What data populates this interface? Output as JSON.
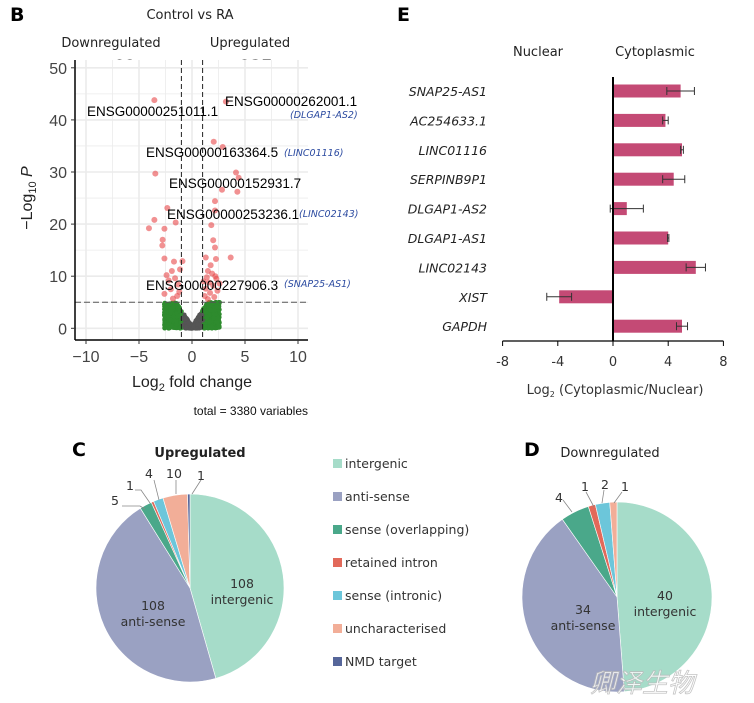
{
  "chart_data": [
    {
      "panel": "B",
      "type": "scatter",
      "title": "Control vs RA",
      "xlabel": {
        "base": "Log",
        "sub": "2",
        "rest": " fold change"
      },
      "ylabel": {
        "prefix": "−Log",
        "sub": "10",
        "rest": " P"
      },
      "xlim": [
        -11,
        11
      ],
      "ylim": [
        -2,
        50
      ],
      "xticks": [
        "−10",
        "−5",
        "0",
        "5",
        "10"
      ],
      "xtick_values": [
        -10,
        -5,
        0,
        5,
        10
      ],
      "yticks": [
        "0",
        "10",
        "20",
        "30",
        "40",
        "50"
      ],
      "ytick_values": [
        0,
        10,
        20,
        30,
        40,
        50
      ],
      "grid": true,
      "fc_cutoff": [
        -1,
        1
      ],
      "p_cutoff": 5,
      "group_labels": {
        "down": "Downregulated",
        "up": "Upregulated"
      },
      "counts": {
        "down": "82",
        "up": "237"
      },
      "caption": "total = 3380 variables",
      "colors": {
        "significant": "#e8474a",
        "fc_only": "#2e8b2e",
        "ns": "#555555"
      },
      "significant_points": [
        [
          -3.55,
          43.8
        ],
        [
          3.2,
          43.5
        ],
        [
          2.05,
          35.8
        ],
        [
          2.9,
          34.8
        ],
        [
          -3.46,
          29.7
        ],
        [
          4.15,
          29.9
        ],
        [
          4.4,
          28.9
        ],
        [
          2.83,
          26.6
        ],
        [
          4.28,
          26.2
        ],
        [
          2.17,
          24.4
        ],
        [
          -2.33,
          23.1
        ],
        [
          2.17,
          22.6
        ],
        [
          -3.55,
          20.8
        ],
        [
          -1.54,
          20.3
        ],
        [
          -4.06,
          19.2
        ],
        [
          -2.6,
          19.1
        ],
        [
          1.82,
          19.8
        ],
        [
          2.0,
          16.9
        ],
        [
          -2.77,
          17.0
        ],
        [
          -2.8,
          15.9
        ],
        [
          2.17,
          15.5
        ],
        [
          3.65,
          13.6
        ],
        [
          -2.6,
          13.4
        ],
        [
          2.26,
          13.3
        ],
        [
          1.3,
          13.6
        ],
        [
          -1.7,
          12.8
        ],
        [
          -0.9,
          12.9
        ],
        [
          1.76,
          12.1
        ],
        [
          -1.13,
          11.3
        ],
        [
          1.5,
          11
        ],
        [
          1.9,
          10.5
        ],
        [
          1.4,
          9.8
        ],
        [
          2.3,
          9.5
        ],
        [
          1.6,
          8.8
        ],
        [
          2.0,
          8.2
        ],
        [
          1.3,
          7.6
        ],
        [
          2.4,
          7.2
        ],
        [
          1.7,
          6.8
        ],
        [
          1.2,
          6.2
        ],
        [
          2.1,
          6.0
        ],
        [
          1.5,
          5.6
        ],
        [
          2.6,
          8.6
        ],
        [
          1.1,
          9.0
        ],
        [
          2.2,
          10.0
        ],
        [
          -1.6,
          9.6
        ],
        [
          -2.2,
          9.2
        ],
        [
          -1.3,
          8.4
        ],
        [
          -2.0,
          7.5
        ],
        [
          -2.6,
          6.6
        ],
        [
          -1.4,
          6.2
        ],
        [
          -1.8,
          5.7
        ],
        [
          -2.4,
          10.2
        ],
        [
          -1.2,
          7.0
        ],
        [
          -1.9,
          11.0
        ]
      ],
      "annotations": [
        {
          "gene": "ENSG00000251011.1",
          "alias": ""
        },
        {
          "gene": "ENSG00000262001.1",
          "alias": "(DLGAP1-AS2)"
        },
        {
          "gene": "ENSG00000163364.5",
          "alias": "(LINC01116)"
        },
        {
          "gene": "ENSG00000152931.7",
          "alias": ""
        },
        {
          "gene": "ENSG00000253236.1",
          "alias": "(LINC02143)"
        },
        {
          "gene": "ENSG00000227906.3",
          "alias": "(SNAP25-AS1)"
        }
      ]
    },
    {
      "panel": "E",
      "type": "bar",
      "orientation": "horizontal",
      "categories": [
        "SNAP25-AS1",
        "AC254633.1",
        "LINC01116",
        "SERPINB9P1",
        "DLGAP1-AS2",
        "DLGAP1-AS1",
        "LINC02143",
        "XIST",
        "GAPDH"
      ],
      "values": [
        4.9,
        3.8,
        5.0,
        4.4,
        1.0,
        4.0,
        6.0,
        -3.9,
        5.0
      ],
      "errors": [
        1.0,
        0.2,
        0.1,
        0.8,
        1.2,
        0.05,
        0.7,
        0.9,
        0.4
      ],
      "xlim": [
        -8,
        8
      ],
      "xticks": [
        "-8",
        "-4",
        "0",
        "4",
        "8"
      ],
      "xtick_values": [
        -8,
        -4,
        0,
        4,
        8
      ],
      "xlabel": {
        "base": "Log",
        "sub": "2",
        "rest": " (Cytoplasmic/Nuclear)"
      },
      "side_labels": {
        "left": "Nuclear",
        "right": "Cytoplasmic"
      },
      "bar_color": "#c44a75"
    },
    {
      "panel": "C",
      "type": "pie",
      "title": "Upregulated",
      "labels": [
        "intergenic",
        "anti-sense",
        "sense (overlapping)",
        "retained intron",
        "sense (intronic)",
        "uncharacterised",
        "NMD target"
      ],
      "values": [
        108,
        108,
        5,
        1,
        4,
        10,
        1
      ],
      "inner_labels": [
        {
          "count": "108",
          "name": "intergenic"
        },
        {
          "count": "108",
          "name": "anti-sense"
        }
      ],
      "outer_labels": [
        "5",
        "1",
        "4",
        "10",
        "1"
      ]
    },
    {
      "panel": "D",
      "type": "pie",
      "title": "Downregulated",
      "labels": [
        "intergenic",
        "anti-sense",
        "sense (overlapping)",
        "retained intron",
        "sense (intronic)",
        "uncharacterised"
      ],
      "values": [
        40,
        34,
        4,
        1,
        2,
        1
      ],
      "inner_labels": [
        {
          "count": "40",
          "name": "intergenic"
        },
        {
          "count": "34",
          "name": "anti-sense"
        }
      ],
      "outer_labels": [
        "4",
        "1",
        "2",
        "1"
      ]
    }
  ],
  "legend": {
    "items": [
      "intergenic",
      "anti-sense",
      "sense (overlapping)",
      "retained intron",
      "sense (intronic)",
      "uncharacterised",
      "NMD target"
    ],
    "colors": [
      "#a6dcc9",
      "#9aa1c2",
      "#4aa88a",
      "#e2695a",
      "#6cc6da",
      "#f2ae98",
      "#56669a"
    ]
  },
  "panel_letters": {
    "b": "B",
    "c": "C",
    "d": "D",
    "e": "E"
  },
  "watermark": "卿泽生物"
}
